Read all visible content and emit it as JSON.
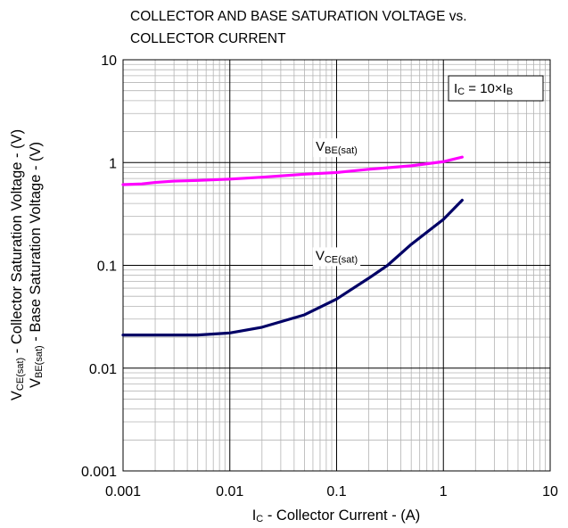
{
  "chart_data": {
    "type": "line",
    "title": [
      "COLLECTOR AND BASE SATURATION VOLTAGE vs.",
      "COLLECTOR CURRENT"
    ],
    "x_scale": "log",
    "y_scale": "log",
    "xlim": [
      0.001,
      10
    ],
    "ylim": [
      0.001,
      10
    ],
    "grid": true,
    "x_ticks": [
      "0.001",
      "0.01",
      "0.1",
      "1",
      "10"
    ],
    "y_ticks": [
      "10",
      "1",
      "0.1",
      "0.01",
      "0.001"
    ],
    "xlabel": {
      "main": "I",
      "sub": "C",
      "rest": " - Collector Current - (A)"
    },
    "ylabel_lines": [
      {
        "main": "V",
        "sub": "CE(sat)",
        "rest": " - Collector Saturation Voltage - (V)"
      },
      {
        "main": "V",
        "sub": "BE(sat)",
        "rest": " - Base Saturation Voltage - (V)"
      }
    ],
    "condition_box": {
      "p1": "I",
      "s1": "C",
      "p2": " = 10×I",
      "s2": "B"
    },
    "series": [
      {
        "name": "VBE(sat)",
        "label_main": "V",
        "label_sub": "BE(sat)",
        "label_at": [
          0.1,
          1.3
        ],
        "color": "#ff00ff",
        "x": [
          0.001,
          0.0015,
          0.002,
          0.003,
          0.005,
          0.01,
          0.02,
          0.05,
          0.1,
          0.2,
          0.5,
          1.0,
          1.5
        ],
        "y": [
          0.61,
          0.62,
          0.64,
          0.66,
          0.67,
          0.69,
          0.72,
          0.77,
          0.8,
          0.86,
          0.93,
          1.02,
          1.13
        ]
      },
      {
        "name": "VCE(sat)",
        "label_main": "V",
        "label_sub": "CE(sat)",
        "label_at": [
          0.1,
          0.113
        ],
        "color": "#000066",
        "x": [
          0.001,
          0.002,
          0.005,
          0.01,
          0.02,
          0.05,
          0.1,
          0.2,
          0.3,
          0.5,
          1.0,
          1.5
        ],
        "y": [
          0.021,
          0.021,
          0.021,
          0.022,
          0.025,
          0.033,
          0.047,
          0.075,
          0.1,
          0.16,
          0.28,
          0.43
        ]
      }
    ]
  }
}
